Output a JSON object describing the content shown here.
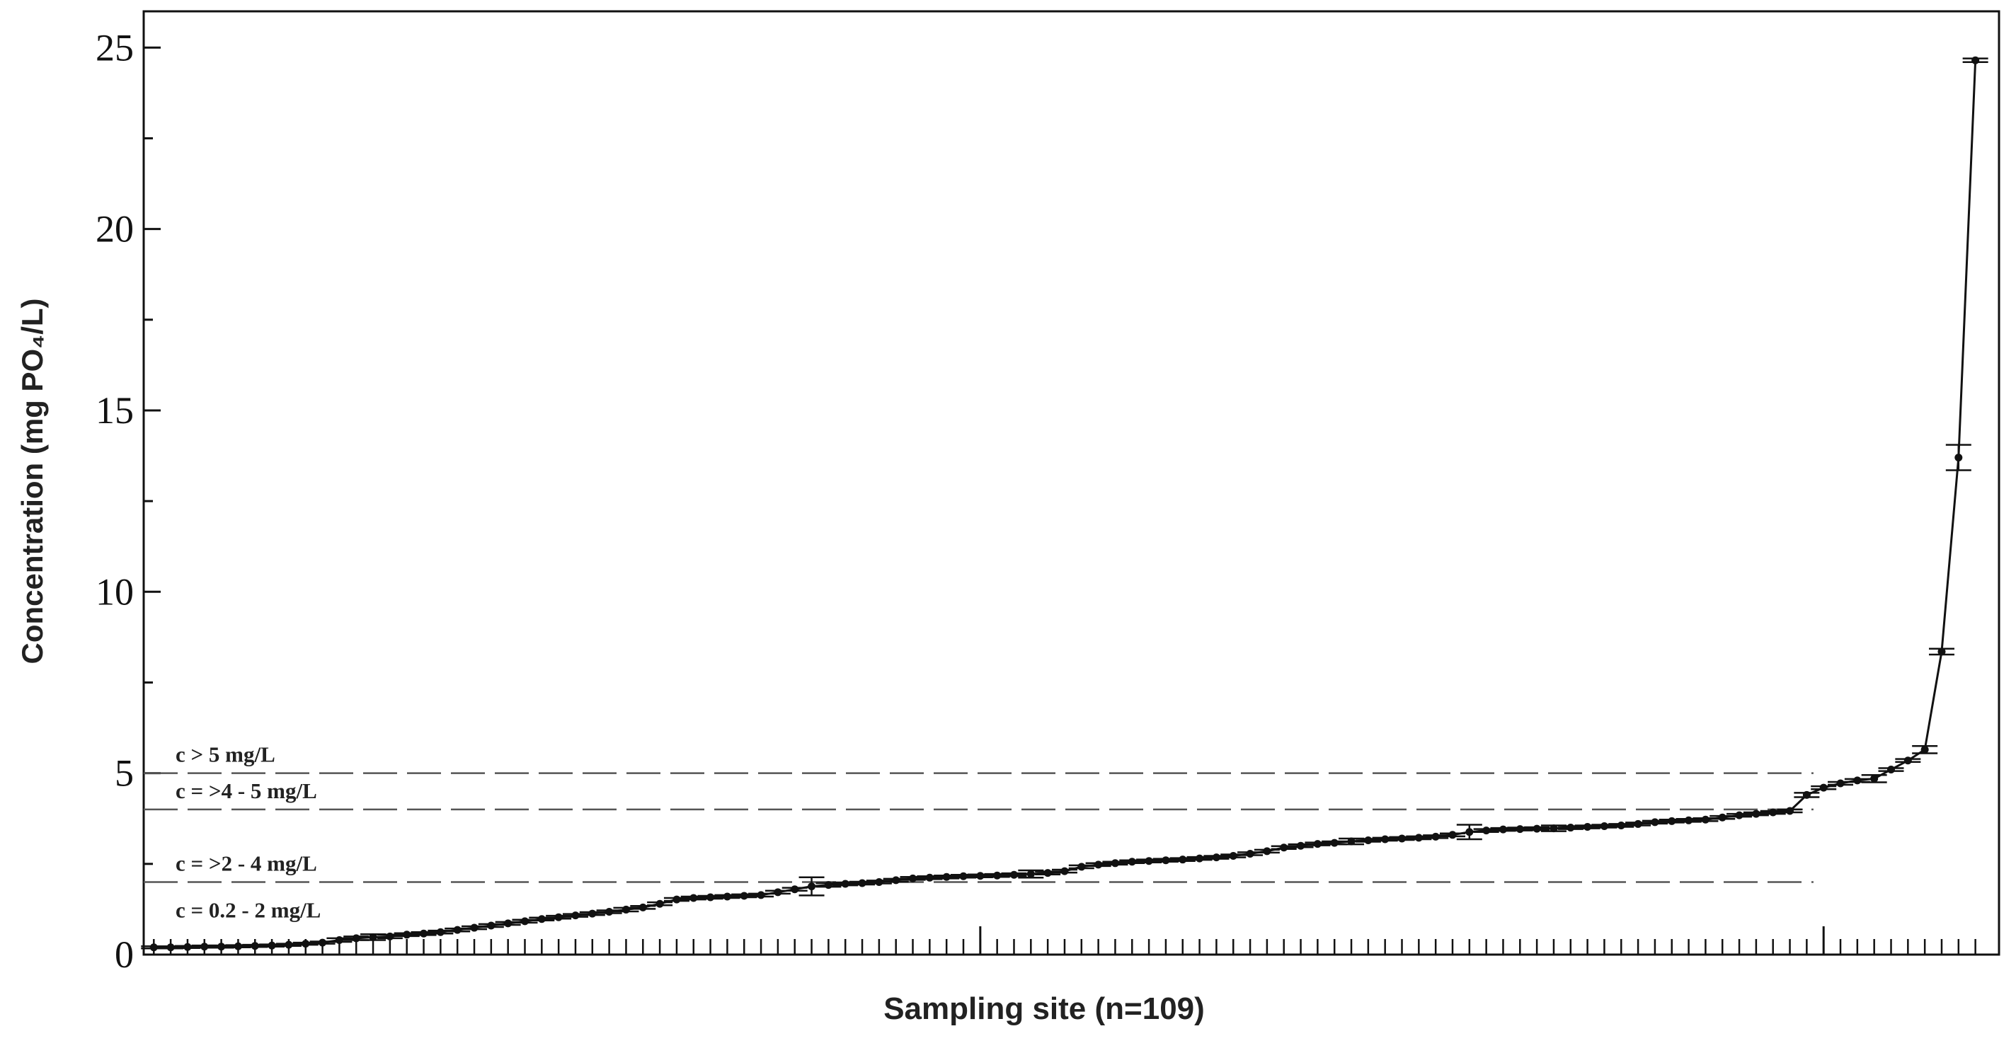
{
  "chart_data": {
    "type": "scatter",
    "x_label": "Sampling site (n=109)",
    "y_label": "Concentration (mg PO₄/L)",
    "x": [
      1,
      2,
      3,
      4,
      5,
      6,
      7,
      8,
      9,
      10,
      11,
      12,
      13,
      14,
      15,
      16,
      17,
      18,
      19,
      20,
      21,
      22,
      23,
      24,
      25,
      26,
      27,
      28,
      29,
      30,
      31,
      32,
      33,
      34,
      35,
      36,
      37,
      38,
      39,
      40,
      41,
      42,
      43,
      44,
      45,
      46,
      47,
      48,
      49,
      50,
      51,
      52,
      53,
      54,
      55,
      56,
      57,
      58,
      59,
      60,
      61,
      62,
      63,
      64,
      65,
      66,
      67,
      68,
      69,
      70,
      71,
      72,
      73,
      74,
      75,
      76,
      77,
      78,
      79,
      80,
      81,
      82,
      83,
      84,
      85,
      86,
      87,
      88,
      89,
      90,
      91,
      92,
      93,
      94,
      95,
      96,
      97,
      98,
      99,
      100,
      101,
      102,
      103,
      104,
      105,
      106,
      107,
      108,
      109
    ],
    "series": [
      {
        "color": "#111111",
        "values": [
          0.2,
          0.2,
          0.21,
          0.22,
          0.22,
          0.23,
          0.24,
          0.25,
          0.27,
          0.3,
          0.33,
          0.4,
          0.45,
          0.48,
          0.5,
          0.55,
          0.58,
          0.62,
          0.68,
          0.74,
          0.8,
          0.86,
          0.92,
          0.98,
          1.03,
          1.08,
          1.13,
          1.18,
          1.24,
          1.3,
          1.4,
          1.52,
          1.56,
          1.58,
          1.6,
          1.62,
          1.64,
          1.72,
          1.8,
          1.88,
          1.92,
          1.95,
          1.97,
          2.0,
          2.05,
          2.1,
          2.12,
          2.14,
          2.16,
          2.17,
          2.18,
          2.2,
          2.22,
          2.25,
          2.3,
          2.42,
          2.48,
          2.52,
          2.56,
          2.58,
          2.6,
          2.62,
          2.65,
          2.68,
          2.72,
          2.78,
          2.85,
          2.95,
          3.0,
          3.05,
          3.08,
          3.12,
          3.15,
          3.18,
          3.2,
          3.22,
          3.25,
          3.3,
          3.38,
          3.42,
          3.45,
          3.46,
          3.47,
          3.48,
          3.5,
          3.52,
          3.54,
          3.56,
          3.6,
          3.65,
          3.68,
          3.7,
          3.72,
          3.78,
          3.84,
          3.88,
          3.92,
          3.96,
          4.4,
          4.6,
          4.72,
          4.8,
          4.85,
          5.1,
          5.35,
          5.65,
          8.35,
          13.7,
          24.65
        ],
        "errors": [
          0.03,
          0.03,
          0.03,
          0.03,
          0.03,
          0.03,
          0.03,
          0.03,
          0.03,
          0.03,
          0.03,
          0.05,
          0.05,
          0.08,
          0.05,
          0.04,
          0.04,
          0.04,
          0.04,
          0.04,
          0.04,
          0.04,
          0.04,
          0.04,
          0.04,
          0.04,
          0.04,
          0.04,
          0.05,
          0.04,
          0.04,
          0.04,
          0.04,
          0.04,
          0.04,
          0.04,
          0.04,
          0.04,
          0.04,
          0.25,
          0.05,
          0.04,
          0.04,
          0.04,
          0.04,
          0.04,
          0.04,
          0.04,
          0.04,
          0.04,
          0.04,
          0.04,
          0.1,
          0.04,
          0.04,
          0.04,
          0.04,
          0.04,
          0.04,
          0.04,
          0.04,
          0.04,
          0.04,
          0.04,
          0.04,
          0.04,
          0.04,
          0.04,
          0.04,
          0.04,
          0.04,
          0.08,
          0.04,
          0.04,
          0.04,
          0.04,
          0.04,
          0.04,
          0.2,
          0.04,
          0.04,
          0.04,
          0.04,
          0.08,
          0.04,
          0.04,
          0.04,
          0.04,
          0.04,
          0.04,
          0.04,
          0.04,
          0.04,
          0.04,
          0.04,
          0.04,
          0.04,
          0.04,
          0.06,
          0.04,
          0.04,
          0.04,
          0.1,
          0.04,
          0.04,
          0.1,
          0.08,
          0.35,
          0.05
        ]
      }
    ],
    "xlim": [
      0.4,
      110.4
    ],
    "xticks": [
      50,
      100
    ],
    "ylim": [
      0,
      26
    ],
    "yticks": [
      0,
      5,
      10,
      15,
      20,
      25
    ],
    "yminor_ticks": [
      2.5,
      7.5,
      12.5,
      17.5,
      22.5
    ],
    "thresholds": [
      {
        "value": 5,
        "label": "c > 5 mg/L"
      },
      {
        "value": 4,
        "label": "c = >4 - 5 mg/L"
      },
      {
        "value": 2,
        "label": "c = >2 - 4 mg/L"
      }
    ],
    "bottom_band_label": "c = 0.2 - 2 mg/L"
  }
}
